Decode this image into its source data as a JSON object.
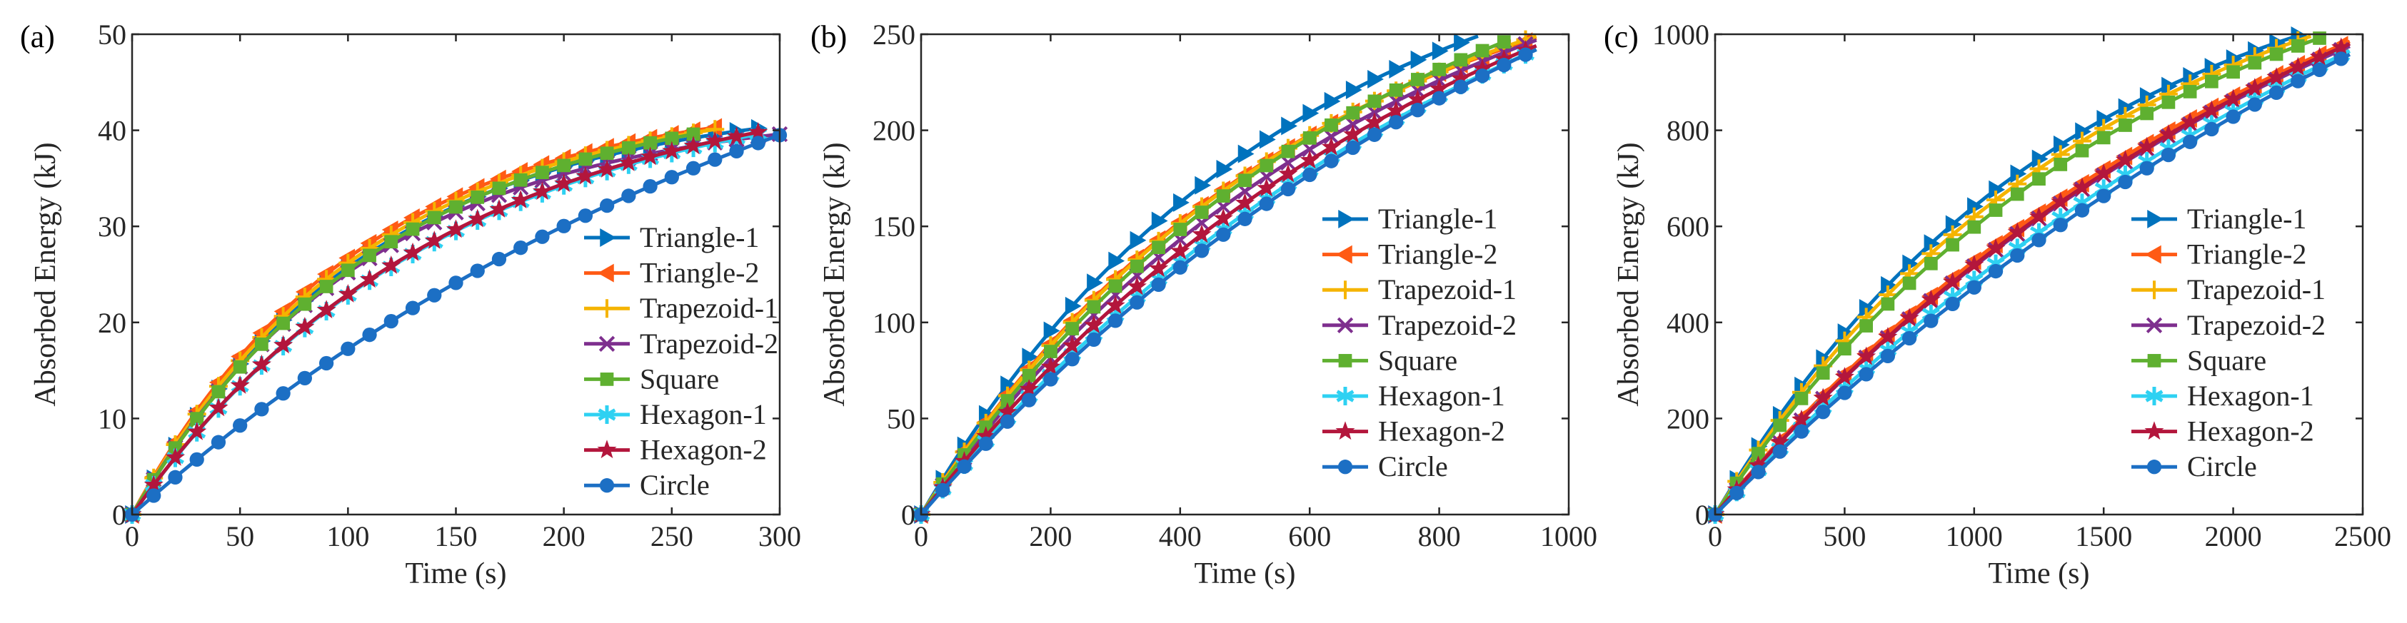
{
  "styles": {
    "Triangle-1": {
      "color": "#0072BD",
      "marker": "triangle-right"
    },
    "Triangle-2": {
      "color": "#FF5A14",
      "marker": "triangle-left"
    },
    "Trapezoid-1": {
      "color": "#F5B400",
      "marker": "plus"
    },
    "Trapezoid-2": {
      "color": "#7E2F8E",
      "marker": "x"
    },
    "Square": {
      "color": "#5FB030",
      "marker": "square"
    },
    "Hexagon-1": {
      "color": "#2ED1F2",
      "marker": "star6"
    },
    "Hexagon-2": {
      "color": "#B3163C",
      "marker": "star5"
    },
    "Circle": {
      "color": "#1C6FC4",
      "marker": "circle"
    }
  },
  "chart_data": [
    {
      "type": "line",
      "panel_label": "(a)",
      "xlabel": "Time (s)",
      "ylabel": "Absorbed Energy (kJ)",
      "xlim": [
        0,
        300
      ],
      "ylim": [
        0,
        50
      ],
      "xticks": [
        0,
        50,
        100,
        150,
        200,
        250,
        300
      ],
      "yticks": [
        0,
        10,
        20,
        30,
        40,
        50
      ],
      "grid": false,
      "legend_position": "right",
      "series": [
        {
          "name": "Triangle-1",
          "x_end": 290,
          "y_end": 40.2,
          "k": 2.6
        },
        {
          "name": "Triangle-2",
          "x_end": 270,
          "y_end": 40.3,
          "k": 2.55
        },
        {
          "name": "Trapezoid-1",
          "x_end": 270,
          "y_end": 40.1,
          "k": 2.45
        },
        {
          "name": "Trapezoid-2",
          "x_end": 300,
          "y_end": 39.6,
          "k": 2.7
        },
        {
          "name": "Square",
          "x_end": 260,
          "y_end": 39.6,
          "k": 2.2
        },
        {
          "name": "Hexagon-1",
          "x_end": 290,
          "y_end": 39.6,
          "k": 2.0
        },
        {
          "name": "Hexagon-2",
          "x_end": 290,
          "y_end": 39.8,
          "k": 2.0
        },
        {
          "name": "Circle",
          "x_end": 300,
          "y_end": 39.5,
          "k": 0.9
        }
      ]
    },
    {
      "type": "line",
      "panel_label": "(b)",
      "xlabel": "Time (s)",
      "ylabel": "Absorbed Energy (kJ)",
      "xlim": [
        0,
        1000
      ],
      "ylim": [
        0,
        250
      ],
      "xticks": [
        0,
        200,
        400,
        600,
        800,
        1000
      ],
      "yticks": [
        0,
        50,
        100,
        150,
        200,
        250
      ],
      "grid": false,
      "legend_position": "bottom-right",
      "series": [
        {
          "name": "Triangle-1",
          "x_end": 860,
          "y_end": 249,
          "k": 1.55
        },
        {
          "name": "Triangle-2",
          "x_end": 950,
          "y_end": 248,
          "k": 1.6
        },
        {
          "name": "Trapezoid-1",
          "x_end": 950,
          "y_end": 249,
          "k": 1.55
        },
        {
          "name": "Trapezoid-2",
          "x_end": 950,
          "y_end": 247,
          "k": 1.3
        },
        {
          "name": "Square",
          "x_end": 900,
          "y_end": 246,
          "k": 1.3
        },
        {
          "name": "Hexagon-1",
          "x_end": 950,
          "y_end": 242,
          "k": 1.0
        },
        {
          "name": "Hexagon-2",
          "x_end": 950,
          "y_end": 244,
          "k": 1.15
        },
        {
          "name": "Circle",
          "x_end": 950,
          "y_end": 242,
          "k": 0.9
        }
      ]
    },
    {
      "type": "line",
      "panel_label": "(c)",
      "xlabel": "Time (s)",
      "ylabel": "Absorbed Energy (kJ)",
      "xlim": [
        0,
        2500
      ],
      "ylim": [
        0,
        1000
      ],
      "xticks": [
        0,
        500,
        1000,
        1500,
        2000,
        2500
      ],
      "yticks": [
        0,
        200,
        400,
        600,
        800,
        1000
      ],
      "grid": false,
      "legend_position": "bottom-right",
      "series": [
        {
          "name": "Triangle-1",
          "x_end": 2250,
          "y_end": 997,
          "k": 1.65
        },
        {
          "name": "Triangle-2",
          "x_end": 2450,
          "y_end": 985,
          "k": 1.05
        },
        {
          "name": "Trapezoid-1",
          "x_end": 2300,
          "y_end": 996,
          "k": 1.55
        },
        {
          "name": "Trapezoid-2",
          "x_end": 2450,
          "y_end": 975,
          "k": 1.0
        },
        {
          "name": "Square",
          "x_end": 2350,
          "y_end": 995,
          "k": 1.45
        },
        {
          "name": "Hexagon-1",
          "x_end": 2450,
          "y_end": 965,
          "k": 0.8
        },
        {
          "name": "Hexagon-2",
          "x_end": 2450,
          "y_end": 980,
          "k": 1.0
        },
        {
          "name": "Circle",
          "x_end": 2450,
          "y_end": 958,
          "k": 0.7
        }
      ]
    }
  ]
}
